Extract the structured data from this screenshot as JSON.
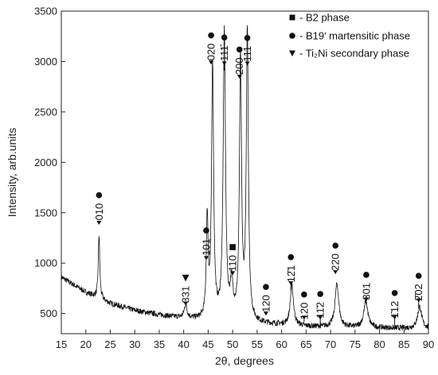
{
  "chart_data": {
    "type": "line",
    "title": "",
    "xlabel": "2θ, degrees",
    "ylabel": "Intensity, arb.units",
    "xlim": [
      15,
      90
    ],
    "ylim": [
      300,
      3500
    ],
    "xticks": [
      15,
      20,
      25,
      30,
      35,
      40,
      45,
      50,
      55,
      60,
      65,
      70,
      75,
      80,
      85,
      90
    ],
    "yticks": [
      500,
      1000,
      1500,
      2000,
      2500,
      3000,
      3500
    ],
    "grid": false,
    "legend_position": "top-right",
    "legend": [
      {
        "marker": "square",
        "label": "- B2 phase"
      },
      {
        "marker": "circle",
        "label": "- B19ʹ martensitic phase"
      },
      {
        "marker": "triangle-down",
        "label": "- Ti₂Ni secondary phase"
      }
    ],
    "series": [
      {
        "baseline": [
          [
            15,
            860
          ],
          [
            20,
            710
          ],
          [
            25,
            600
          ],
          [
            30,
            530
          ],
          [
            35,
            485
          ],
          [
            40,
            450
          ],
          [
            44,
            430
          ],
          [
            55,
            400
          ],
          [
            65,
            370
          ],
          [
            75,
            360
          ],
          [
            90,
            350
          ]
        ],
        "peaks": [
          {
            "x": 22.7,
            "height": 630,
            "width": 0.18
          },
          {
            "x": 40.4,
            "height": 130,
            "width": 0.35
          },
          {
            "x": 44.8,
            "height": 990,
            "width": 0.22
          },
          {
            "x": 45.9,
            "height": 2530,
            "width": 0.25
          },
          {
            "x": 48.3,
            "height": 2860,
            "width": 0.28
          },
          {
            "x": 49.8,
            "height": 330,
            "width": 0.35
          },
          {
            "x": 51.6,
            "height": 2590,
            "width": 0.25
          },
          {
            "x": 53.0,
            "height": 2880,
            "width": 0.25
          },
          {
            "x": 62.1,
            "height": 390,
            "width": 0.4
          },
          {
            "x": 71.3,
            "height": 430,
            "width": 0.45
          },
          {
            "x": 77.2,
            "height": 260,
            "width": 0.5
          },
          {
            "x": 88.2,
            "height": 215,
            "width": 0.5
          }
        ]
      }
    ],
    "annotations": [
      {
        "label": "010",
        "x": 22.7,
        "label_y": 1595,
        "arrow_to": 1380,
        "marker": "circle"
      },
      {
        "label": "331",
        "x": 40.4,
        "label_y": 775,
        "arrow_to": 580,
        "marker": "triangle"
      },
      {
        "label": "101",
        "x": 44.6,
        "label_y": 1245,
        "arrow_to": 1030,
        "marker": "circle"
      },
      {
        "label": "020",
        "x": 45.6,
        "label_y": 3180,
        "arrow_to": 2970,
        "marker": "circle"
      },
      {
        "label": "111̄",
        "x": 48.3,
        "label_y": 3160,
        "arrow_to": 2960,
        "marker": "circle"
      },
      {
        "label": "110",
        "x": 50.0,
        "label_y": 1080,
        "arrow_to": 880,
        "marker": "square"
      },
      {
        "label": "200",
        "x": 51.4,
        "label_y": 3040,
        "arrow_to": 2830,
        "marker": "circle"
      },
      {
        "label": "111",
        "x": 53.0,
        "label_y": 3155,
        "arrow_to": 2960,
        "marker": "circle"
      },
      {
        "label": "120",
        "x": 56.8,
        "label_y": 685,
        "arrow_to": 480,
        "marker": "circle"
      },
      {
        "label": "12̄1",
        "x": 61.9,
        "label_y": 980,
        "arrow_to": 780,
        "marker": "circle"
      },
      {
        "label": "120",
        "x": 64.6,
        "label_y": 610,
        "arrow_to": 440,
        "marker": "circle"
      },
      {
        "label": "11̄2",
        "x": 67.9,
        "label_y": 615,
        "arrow_to": 440,
        "marker": "circle"
      },
      {
        "label": "220",
        "x": 71.0,
        "label_y": 1095,
        "arrow_to": 890,
        "marker": "circle"
      },
      {
        "label": "301",
        "x": 77.3,
        "label_y": 805,
        "arrow_to": 620,
        "marker": "circle"
      },
      {
        "label": "1̄12",
        "x": 83.1,
        "label_y": 625,
        "arrow_to": 440,
        "marker": "circle"
      },
      {
        "label": "2̄02",
        "x": 88.0,
        "label_y": 795,
        "arrow_to": 610,
        "marker": "circle"
      }
    ]
  }
}
